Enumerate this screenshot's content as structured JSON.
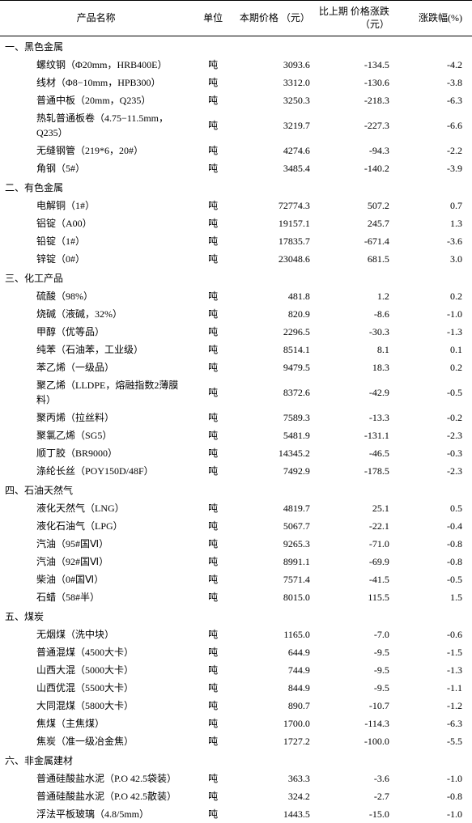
{
  "columns": {
    "name": "产品名称",
    "unit": "单位",
    "price": "本期价格\n（元）",
    "change": "比上期\n价格涨跌\n（元）",
    "pct": "涨跌幅(%)"
  },
  "sections": [
    {
      "title": "一、黑色金属",
      "rows": [
        {
          "name": "螺纹钢（Φ20mm，HRB400E）",
          "unit": "吨",
          "price": "3093.6",
          "change": "-134.5",
          "pct": "-4.2"
        },
        {
          "name": "线材（Φ8−10mm，HPB300）",
          "unit": "吨",
          "price": "3312.0",
          "change": "-130.6",
          "pct": "-3.8"
        },
        {
          "name": "普通中板（20mm，Q235）",
          "unit": "吨",
          "price": "3250.3",
          "change": "-218.3",
          "pct": "-6.3"
        },
        {
          "name": "热轧普通板卷（4.75−11.5mm，Q235）",
          "unit": "吨",
          "price": "3219.7",
          "change": "-227.3",
          "pct": "-6.6"
        },
        {
          "name": "无缝钢管（219*6，20#）",
          "unit": "吨",
          "price": "4274.6",
          "change": "-94.3",
          "pct": "-2.2"
        },
        {
          "name": "角钢（5#）",
          "unit": "吨",
          "price": "3485.4",
          "change": "-140.2",
          "pct": "-3.9"
        }
      ]
    },
    {
      "title": "二、有色金属",
      "rows": [
        {
          "name": "电解铜（1#）",
          "unit": "吨",
          "price": "72774.3",
          "change": "507.2",
          "pct": "0.7"
        },
        {
          "name": "铝锭（A00）",
          "unit": "吨",
          "price": "19157.1",
          "change": "245.7",
          "pct": "1.3"
        },
        {
          "name": "铅锭（1#）",
          "unit": "吨",
          "price": "17835.7",
          "change": "-671.4",
          "pct": "-3.6"
        },
        {
          "name": "锌锭（0#）",
          "unit": "吨",
          "price": "23048.6",
          "change": "681.5",
          "pct": "3.0"
        }
      ]
    },
    {
      "title": "三、化工产品",
      "rows": [
        {
          "name": "硫酸（98%）",
          "unit": "吨",
          "price": "481.8",
          "change": "1.2",
          "pct": "0.2"
        },
        {
          "name": "烧碱（液碱，32%）",
          "unit": "吨",
          "price": "820.9",
          "change": "-8.6",
          "pct": "-1.0"
        },
        {
          "name": "甲醇（优等品）",
          "unit": "吨",
          "price": "2296.5",
          "change": "-30.3",
          "pct": "-1.3"
        },
        {
          "name": "纯苯（石油苯，工业级）",
          "unit": "吨",
          "price": "8514.1",
          "change": "8.1",
          "pct": "0.1"
        },
        {
          "name": "苯乙烯（一级品）",
          "unit": "吨",
          "price": "9479.5",
          "change": "18.3",
          "pct": "0.2"
        },
        {
          "name": "聚乙烯（LLDPE，熔融指数2薄膜料）",
          "unit": "吨",
          "price": "8372.6",
          "change": "-42.9",
          "pct": "-0.5"
        },
        {
          "name": "聚丙烯（拉丝料）",
          "unit": "吨",
          "price": "7589.3",
          "change": "-13.3",
          "pct": "-0.2"
        },
        {
          "name": "聚氯乙烯（SG5）",
          "unit": "吨",
          "price": "5481.9",
          "change": "-131.1",
          "pct": "-2.3"
        },
        {
          "name": "顺丁胶（BR9000）",
          "unit": "吨",
          "price": "14345.2",
          "change": "-46.5",
          "pct": "-0.3"
        },
        {
          "name": "涤纶长丝（POY150D/48F）",
          "unit": "吨",
          "price": "7492.9",
          "change": "-178.5",
          "pct": "-2.3"
        }
      ]
    },
    {
      "title": "四、石油天然气",
      "rows": [
        {
          "name": "液化天然气（LNG）",
          "unit": "吨",
          "price": "4819.7",
          "change": "25.1",
          "pct": "0.5"
        },
        {
          "name": "液化石油气（LPG）",
          "unit": "吨",
          "price": "5067.7",
          "change": "-22.1",
          "pct": "-0.4"
        },
        {
          "name": "汽油（95#国Ⅵ）",
          "unit": "吨",
          "price": "9265.3",
          "change": "-71.0",
          "pct": "-0.8"
        },
        {
          "name": "汽油（92#国Ⅵ）",
          "unit": "吨",
          "price": "8991.1",
          "change": "-69.9",
          "pct": "-0.8"
        },
        {
          "name": "柴油（0#国Ⅵ）",
          "unit": "吨",
          "price": "7571.4",
          "change": "-41.5",
          "pct": "-0.5"
        },
        {
          "name": "石蜡（58#半）",
          "unit": "吨",
          "price": "8015.0",
          "change": "115.5",
          "pct": "1.5"
        }
      ]
    },
    {
      "title": "五、煤炭",
      "rows": [
        {
          "name": "无烟煤（洗中块）",
          "unit": "吨",
          "price": "1165.0",
          "change": "-7.0",
          "pct": "-0.6"
        },
        {
          "name": "普通混煤（4500大卡）",
          "unit": "吨",
          "price": "644.9",
          "change": "-9.5",
          "pct": "-1.5"
        },
        {
          "name": "山西大混（5000大卡）",
          "unit": "吨",
          "price": "744.9",
          "change": "-9.5",
          "pct": "-1.3"
        },
        {
          "name": "山西优混（5500大卡）",
          "unit": "吨",
          "price": "844.9",
          "change": "-9.5",
          "pct": "-1.1"
        },
        {
          "name": "大同混煤（5800大卡）",
          "unit": "吨",
          "price": "890.7",
          "change": "-10.7",
          "pct": "-1.2"
        },
        {
          "name": "焦煤（主焦煤）",
          "unit": "吨",
          "price": "1700.0",
          "change": "-114.3",
          "pct": "-6.3"
        },
        {
          "name": "焦炭（准一级冶金焦）",
          "unit": "吨",
          "price": "1727.2",
          "change": "-100.0",
          "pct": "-5.5"
        }
      ]
    },
    {
      "title": "六、非金属建材",
      "rows": [
        {
          "name": "普通硅酸盐水泥（P.O 42.5袋装）",
          "unit": "吨",
          "price": "363.3",
          "change": "-3.6",
          "pct": "-1.0"
        },
        {
          "name": "普通硅酸盐水泥（P.O 42.5散装）",
          "unit": "吨",
          "price": "324.2",
          "change": "-2.7",
          "pct": "-0.8"
        },
        {
          "name": "浮法平板玻璃（4.8/5mm）",
          "unit": "吨",
          "price": "1443.5",
          "change": "-15.0",
          "pct": "-1.0"
        }
      ]
    }
  ]
}
